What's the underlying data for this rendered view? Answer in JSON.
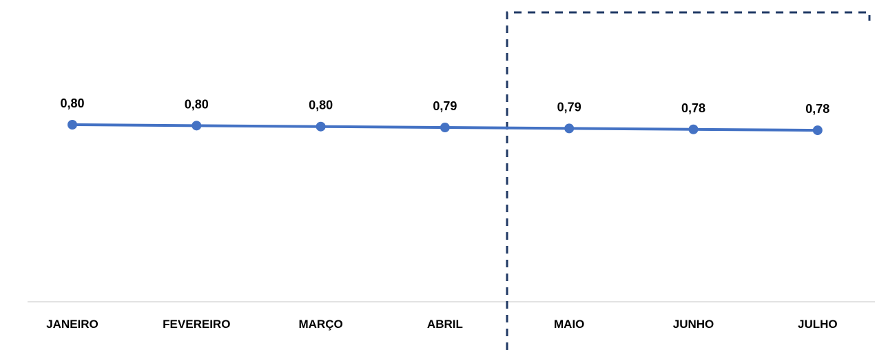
{
  "chart_data": {
    "type": "line",
    "categories": [
      "JANEIRO",
      "FEVEREIRO",
      "MARÇO",
      "ABRIL",
      "MAIO",
      "JUNHO",
      "JULHO"
    ],
    "series": [
      {
        "values": [
          0.8,
          0.8,
          0.8,
          0.79,
          0.79,
          0.78,
          0.78
        ],
        "data_labels": [
          "0,80",
          "0,80",
          "0,80",
          "0,79",
          "0,79",
          "0,78",
          "0,78"
        ],
        "color": "#4472C4"
      }
    ],
    "title": "",
    "xlabel": "",
    "ylabel": "",
    "grid": false,
    "legend": "none",
    "highlight_region": {
      "from_category": "MAIO",
      "to_category": "JULHO",
      "style": "dashed",
      "color": "#1F3864"
    },
    "axis_color": "#D9D9D9"
  }
}
